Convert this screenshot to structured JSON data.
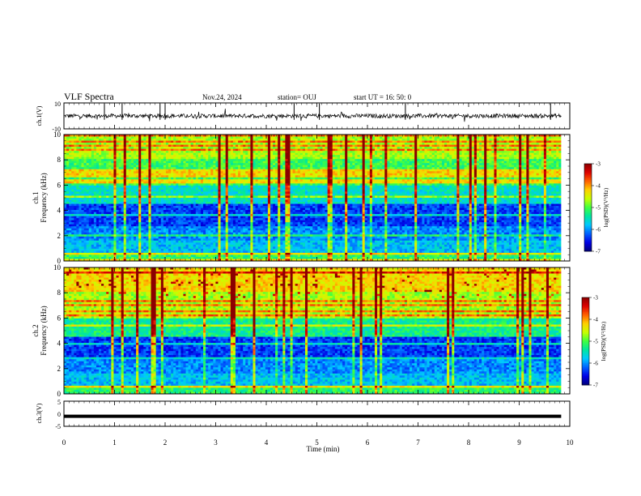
{
  "header": {
    "title": "VLF Spectra",
    "date": "Nov.24, 2024",
    "station": "station= OUJ",
    "start": "start  UT =   16: 50: 0"
  },
  "chart_data": [
    {
      "type": "line",
      "panel": "ch1-waveform",
      "ylabel": "ch.1(V)",
      "ylim": [
        -10,
        10
      ],
      "yticks": [
        "10",
        "-10"
      ],
      "baseline": 0,
      "x_range_min": [
        0,
        9.83
      ]
    },
    {
      "type": "heatmap",
      "panel": "ch1-spectrogram",
      "ylabel": "ch.1\nFrequency (kHz)",
      "ylim": [
        0,
        10
      ],
      "yticks": [
        "0",
        "2",
        "4",
        "6",
        "8",
        "10"
      ],
      "x_range_min": [
        0,
        9.83
      ],
      "colorbar": {
        "label": "log(PSD)(V²/Hz)",
        "range": [
          -7,
          -3
        ],
        "ticks": [
          "-3",
          "-4",
          "-5",
          "-6",
          "-7"
        ]
      }
    },
    {
      "type": "heatmap",
      "panel": "ch2-spectrogram",
      "ylabel": "ch.2\nFrequency (kHz)",
      "ylim": [
        0,
        10
      ],
      "yticks": [
        "0",
        "2",
        "4",
        "6",
        "8",
        "10"
      ],
      "x_range_min": [
        0,
        9.83
      ],
      "colorbar": {
        "label": "log(PSD)(V²/Hz)",
        "range": [
          -7,
          -3
        ],
        "ticks": [
          "-3",
          "-4",
          "-5",
          "-6",
          "-7"
        ]
      }
    },
    {
      "type": "line",
      "panel": "ch3-waveform",
      "ylabel": "ch.3(V)",
      "ylim": [
        -5,
        5
      ],
      "yticks": [
        "5",
        "0",
        "-5"
      ],
      "baseline": -1,
      "x_range_min": [
        0,
        9.83
      ]
    }
  ],
  "xaxis": {
    "label": "Time  (min)",
    "ticks": [
      "0",
      "1",
      "2",
      "3",
      "4",
      "5",
      "6",
      "7",
      "8",
      "9",
      "10"
    ],
    "xlim": [
      0,
      10
    ]
  },
  "colors": {
    "colormap": [
      "#00007a",
      "#0000e6",
      "#0060ff",
      "#00c8ff",
      "#00e6a0",
      "#40ff40",
      "#c8ff00",
      "#ffd000",
      "#ff6000",
      "#dd0000",
      "#8b0000"
    ]
  }
}
